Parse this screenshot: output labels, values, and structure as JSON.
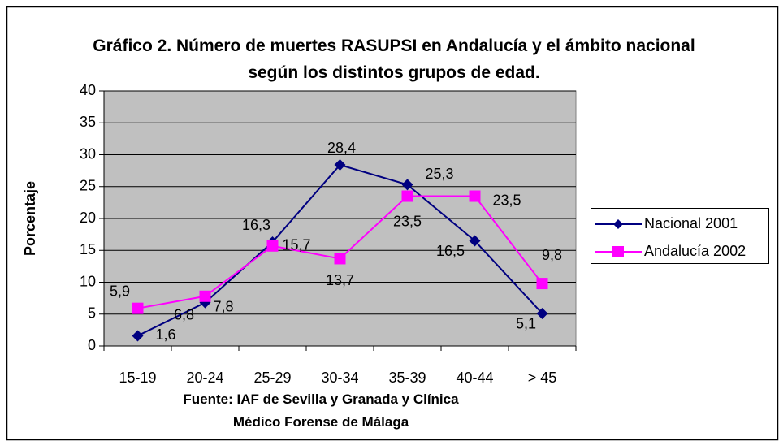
{
  "chart_data": {
    "type": "line",
    "title": "Gráfico 2. Número de muertes RASUPSI en Andalucía y el ámbito nacional según los distintos grupos de edad.",
    "y_label": "Porcentaje",
    "note": "Fuente: IAF de Sevilla y Granada y Clínica Médico Forense de Málaga",
    "categories": [
      "15-19",
      "20-24",
      "25-29",
      "30-34",
      "35-39",
      "40-44",
      "> 45"
    ],
    "series": [
      {
        "name": "Nacional 2001",
        "color": "#000080",
        "marker": "diamond",
        "values": [
          1.6,
          6.8,
          16.3,
          28.4,
          25.3,
          16.5,
          5.1
        ],
        "value_labels": [
          "1,6",
          "6,8",
          "16,3",
          "28,4",
          "25,3",
          "16,5",
          "5,1"
        ]
      },
      {
        "name": "Andalucía 2002",
        "color": "#ff00ff",
        "marker": "square",
        "values": [
          5.9,
          7.8,
          15.7,
          13.7,
          23.5,
          23.5,
          9.8
        ],
        "value_labels": [
          "5,9",
          "7,8",
          "15,7",
          "13,7",
          "23,5",
          "23,5",
          "9,8"
        ]
      }
    ],
    "ylim": [
      0,
      40
    ],
    "yticks": [
      0,
      5,
      10,
      15,
      20,
      25,
      30,
      35,
      40
    ],
    "grid": true,
    "legend": "right"
  }
}
